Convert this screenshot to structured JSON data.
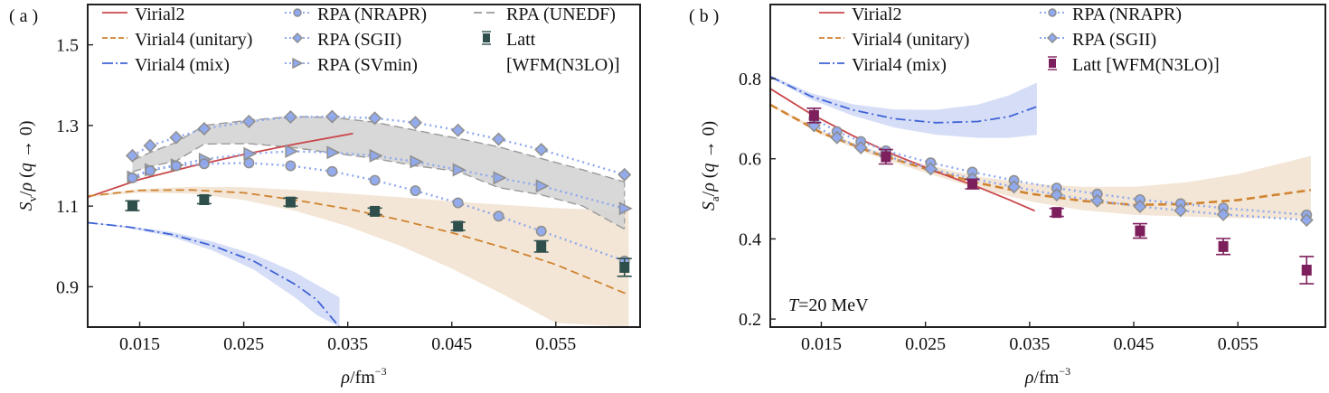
{
  "chart_data": [
    {
      "panel_label": "( a )",
      "type": "line",
      "xlabel": "ρ/fm⁻³",
      "ylabel": "S_v/ρ (q → 0)",
      "ylabel_main": "S",
      "ylabel_sub": "v",
      "ylabel_rest": "/ρ (q → 0)",
      "xlim": [
        0.01,
        0.0631
      ],
      "ylim": [
        0.8,
        1.6
      ],
      "xticks": [
        0.015,
        0.025,
        0.035,
        0.045,
        0.055
      ],
      "xtick_labels": [
        "0.015",
        "0.025",
        "0.035",
        "0.045",
        "0.055"
      ],
      "yticks": [
        0.9,
        1.1,
        1.3,
        1.5
      ],
      "ytick_labels": [
        "0.9",
        "1.1",
        "1.3",
        "1.5"
      ],
      "legend_placement": "top",
      "legend": [
        {
          "label": "Virial2",
          "style": "solid",
          "color": "#c9474b"
        },
        {
          "label": "Virial4 (unitary)",
          "style": "dashed",
          "color": "#d08330"
        },
        {
          "label": "Virial4 (mix)",
          "style": "dashdot",
          "color": "#3f63d6"
        },
        {
          "label": "RPA (NRAPR)",
          "style": "dotted-circle",
          "color": "#8fa8ee"
        },
        {
          "label": "RPA (SGII)",
          "style": "dotted-diamond",
          "color": "#8fa8ee"
        },
        {
          "label": "RPA (SVmin)",
          "style": "dotted-triangle",
          "color": "#8fa8ee"
        },
        {
          "label": "RPA (UNEDF)",
          "style": "dashed-band",
          "color": "#9a9a9a"
        },
        {
          "label": "Latt",
          "label2": "[WFM(N3LO)]",
          "style": "errorbar-square",
          "color": "#2f4f4c"
        }
      ],
      "series": [
        {
          "name": "Virial2",
          "kind": "line",
          "color": "#c9474b",
          "x": [
            0.01,
            0.015,
            0.02,
            0.025,
            0.03,
            0.0355
          ],
          "y": [
            1.122,
            1.166,
            1.199,
            1.228,
            1.254,
            1.28
          ]
        },
        {
          "name": "Virial4 (unitary)",
          "kind": "dashed",
          "color": "#d08330",
          "x": [
            0.01,
            0.015,
            0.02,
            0.025,
            0.03,
            0.035,
            0.04,
            0.045,
            0.05,
            0.055,
            0.062
          ],
          "y": [
            1.125,
            1.139,
            1.14,
            1.133,
            1.115,
            1.093,
            1.066,
            1.034,
            0.997,
            0.955,
            0.88
          ],
          "band_upper": [
            1.127,
            1.142,
            1.148,
            1.147,
            1.14,
            1.131,
            1.122,
            1.112,
            1.103,
            1.095,
            1.088
          ],
          "band_lower": [
            1.123,
            1.133,
            1.131,
            1.115,
            1.088,
            1.05,
            1.002,
            0.945,
            0.88,
            0.81,
            0.8
          ],
          "band_color": "#f3e6d6"
        },
        {
          "name": "Virial4 (mix)",
          "kind": "dashdot",
          "color": "#3f63d6",
          "x": [
            0.01,
            0.014,
            0.018,
            0.022,
            0.026,
            0.03,
            0.032,
            0.0342
          ],
          "y": [
            1.059,
            1.048,
            1.03,
            1.002,
            0.963,
            0.905,
            0.868,
            0.8
          ],
          "band_upper": [
            1.06,
            1.05,
            1.036,
            1.012,
            0.98,
            0.935,
            0.905,
            0.874
          ],
          "band_lower": [
            1.058,
            1.045,
            1.024,
            0.99,
            0.942,
            0.872,
            0.83,
            0.8
          ],
          "band_color": "#d6ddf7"
        },
        {
          "name": "RPA (UNEDF)",
          "kind": "band",
          "color": "#9a9a9a",
          "x": [
            0.0143,
            0.016,
            0.0185,
            0.0212,
            0.0255,
            0.0295,
            0.0335,
            0.0376,
            0.0415,
            0.0456,
            0.0495,
            0.0536,
            0.0576,
            0.0616
          ],
          "band_upper": [
            1.213,
            1.233,
            1.258,
            1.3,
            1.313,
            1.322,
            1.32,
            1.308,
            1.288,
            1.268,
            1.247,
            1.218,
            1.19,
            1.16
          ],
          "band_lower": [
            1.185,
            1.198,
            1.212,
            1.254,
            1.255,
            1.246,
            1.232,
            1.218,
            1.2,
            1.186,
            1.146,
            1.128,
            1.1,
            1.043
          ],
          "band_color": "#d4d4d4"
        },
        {
          "name": "RPA (SGII)",
          "kind": "dotted-marker",
          "marker": "diamond",
          "color": "#8fa8ee",
          "x": [
            0.0143,
            0.016,
            0.0185,
            0.0212,
            0.0255,
            0.0295,
            0.0335,
            0.0376,
            0.0415,
            0.0456,
            0.0495,
            0.0536,
            0.0616
          ],
          "y": [
            1.225,
            1.25,
            1.27,
            1.292,
            1.31,
            1.321,
            1.322,
            1.318,
            1.307,
            1.288,
            1.266,
            1.24,
            1.178
          ]
        },
        {
          "name": "RPA (SVmin)",
          "kind": "dotted-marker",
          "marker": "triangle",
          "color": "#8fa8ee",
          "x": [
            0.0143,
            0.016,
            0.0185,
            0.0212,
            0.0255,
            0.0295,
            0.0335,
            0.0376,
            0.0415,
            0.0456,
            0.0495,
            0.0536,
            0.0616
          ],
          "y": [
            1.172,
            1.19,
            1.202,
            1.216,
            1.23,
            1.236,
            1.233,
            1.225,
            1.21,
            1.19,
            1.17,
            1.15,
            1.094
          ]
        },
        {
          "name": "RPA (NRAPR)",
          "kind": "dotted-marker",
          "marker": "circle",
          "color": "#8fa8ee",
          "x": [
            0.0143,
            0.016,
            0.0185,
            0.0212,
            0.0255,
            0.0295,
            0.0335,
            0.0376,
            0.0415,
            0.0456,
            0.0495,
            0.0536,
            0.0616
          ],
          "y": [
            1.17,
            1.188,
            1.2,
            1.205,
            1.207,
            1.2,
            1.186,
            1.164,
            1.138,
            1.108,
            1.075,
            1.038,
            0.964
          ]
        },
        {
          "name": "Latt [WFM(N3LO)]",
          "kind": "errorbar",
          "marker": "square",
          "color": "#2f4f4c",
          "x": [
            0.0143,
            0.0212,
            0.0295,
            0.0376,
            0.0456,
            0.0536,
            0.0616
          ],
          "y": [
            1.101,
            1.116,
            1.11,
            1.087,
            1.05,
            1.0,
            0.948
          ],
          "err": [
            0.012,
            0.01,
            0.01,
            0.008,
            0.01,
            0.014,
            0.022
          ]
        }
      ]
    },
    {
      "panel_label": "( b )",
      "type": "line",
      "xlabel": "ρ/fm⁻³",
      "ylabel": "S_a/ρ (q → 0)",
      "ylabel_main": "S",
      "ylabel_sub": "a",
      "ylabel_rest": "/ρ (q → 0)",
      "annotation": "T=20 MeV",
      "annotation_italic": "T",
      "annotation_rest": "=20 MeV",
      "xlim": [
        0.0101,
        0.0634
      ],
      "ylim": [
        0.18,
        0.985
      ],
      "xticks": [
        0.015,
        0.025,
        0.035,
        0.045,
        0.055
      ],
      "xtick_labels": [
        "0.015",
        "0.025",
        "0.035",
        "0.045",
        "0.055"
      ],
      "yticks": [
        0.2,
        0.4,
        0.6,
        0.8
      ],
      "ytick_labels": [
        "0.2",
        "0.4",
        "0.6",
        "0.8"
      ],
      "legend_placement": "top",
      "legend": [
        {
          "label": "Virial2",
          "style": "solid",
          "color": "#c9474b"
        },
        {
          "label": "Virial4 (unitary)",
          "style": "dashed",
          "color": "#d08330"
        },
        {
          "label": "Virial4 (mix)",
          "style": "dashdot",
          "color": "#3f63d6"
        },
        {
          "label": "RPA (NRAPR)",
          "style": "dotted-circle",
          "color": "#8fa8ee"
        },
        {
          "label": "RPA (SGII)",
          "style": "dotted-diamond",
          "color": "#8fa8ee"
        },
        {
          "label": "Latt [WFM(N3LO)]",
          "style": "errorbar-square",
          "color": "#7d1f5c"
        }
      ],
      "series": [
        {
          "name": "Virial4 (mix)",
          "kind": "dashdot",
          "color": "#3f63d6",
          "x": [
            0.0101,
            0.014,
            0.018,
            0.022,
            0.026,
            0.03,
            0.033,
            0.0357
          ],
          "y": [
            0.805,
            0.756,
            0.722,
            0.7,
            0.69,
            0.693,
            0.705,
            0.73
          ],
          "band_upper": [
            0.808,
            0.764,
            0.736,
            0.723,
            0.722,
            0.735,
            0.758,
            0.79
          ],
          "band_lower": [
            0.802,
            0.748,
            0.708,
            0.678,
            0.66,
            0.652,
            0.652,
            0.66
          ],
          "band_color": "#d6ddf7"
        },
        {
          "name": "Virial4 (unitary)",
          "kind": "dashed",
          "color": "#d08330",
          "x": [
            0.0101,
            0.015,
            0.02,
            0.025,
            0.03,
            0.035,
            0.04,
            0.045,
            0.05,
            0.055,
            0.062
          ],
          "y": [
            0.735,
            0.665,
            0.615,
            0.575,
            0.54,
            0.513,
            0.495,
            0.485,
            0.487,
            0.497,
            0.522
          ],
          "band_upper": [
            0.737,
            0.67,
            0.622,
            0.585,
            0.556,
            0.538,
            0.53,
            0.53,
            0.541,
            0.562,
            0.607
          ],
          "band_lower": [
            0.733,
            0.66,
            0.608,
            0.565,
            0.526,
            0.494,
            0.472,
            0.46,
            0.456,
            0.452,
            0.45
          ],
          "band_color": "#f3e6d6"
        },
        {
          "name": "Virial2",
          "kind": "line",
          "color": "#c9474b",
          "x": [
            0.0101,
            0.014,
            0.018,
            0.022,
            0.026,
            0.03,
            0.033,
            0.0355
          ],
          "y": [
            0.775,
            0.712,
            0.658,
            0.61,
            0.568,
            0.53,
            0.498,
            0.47
          ]
        },
        {
          "name": "RPA (NRAPR)",
          "kind": "dotted-marker",
          "marker": "circle",
          "color": "#8fa8ee",
          "x": [
            0.0143,
            0.0165,
            0.0188,
            0.0212,
            0.0255,
            0.0295,
            0.0335,
            0.0376,
            0.0415,
            0.0456,
            0.0495,
            0.0536,
            0.0616
          ],
          "y": [
            0.7,
            0.668,
            0.643,
            0.62,
            0.59,
            0.567,
            0.546,
            0.527,
            0.512,
            0.498,
            0.488,
            0.477,
            0.46
          ]
        },
        {
          "name": "RPA (SGII)",
          "kind": "dotted-marker",
          "marker": "diamond",
          "color": "#8fa8ee",
          "x": [
            0.0143,
            0.0165,
            0.0188,
            0.0212,
            0.0255,
            0.0295,
            0.0335,
            0.0376,
            0.0415,
            0.0456,
            0.0495,
            0.0536,
            0.0616
          ],
          "y": [
            0.683,
            0.653,
            0.628,
            0.607,
            0.575,
            0.55,
            0.53,
            0.51,
            0.495,
            0.481,
            0.471,
            0.461,
            0.447
          ]
        },
        {
          "name": "Latt [WFM(N3LO)]",
          "kind": "errorbar",
          "marker": "square",
          "color": "#7d1f5c",
          "x": [
            0.0143,
            0.0212,
            0.0295,
            0.0376,
            0.0456,
            0.0536,
            0.0616
          ],
          "y": [
            0.708,
            0.605,
            0.537,
            0.466,
            0.42,
            0.381,
            0.322
          ],
          "err": [
            0.018,
            0.018,
            0.012,
            0.01,
            0.018,
            0.02,
            0.034
          ]
        }
      ]
    }
  ]
}
